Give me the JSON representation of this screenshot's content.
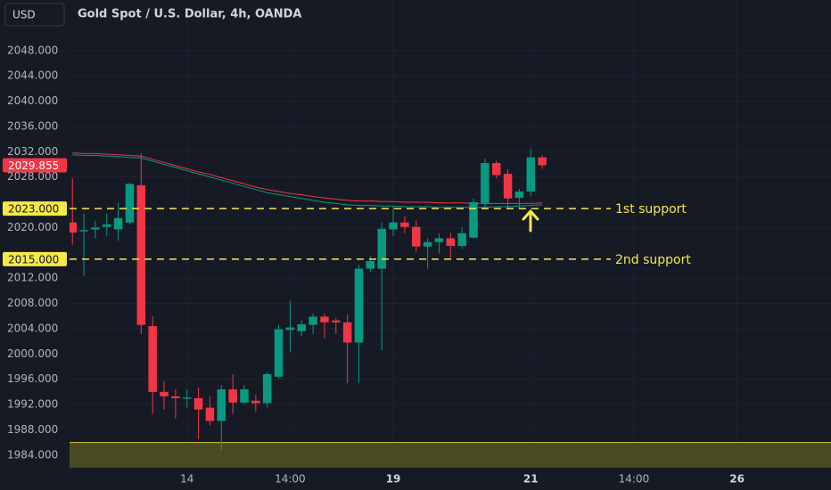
{
  "chart_data": {
    "type": "candlestick",
    "title": "Gold Spot / U.S. Dollar, 4h, OANDA",
    "currency": "USD",
    "ylim": [
      1982,
      2056
    ],
    "yticks": [
      {
        "value": 2048,
        "label": "2048.000"
      },
      {
        "value": 2044,
        "label": "2044.000"
      },
      {
        "value": 2040,
        "label": "2040.000"
      },
      {
        "value": 2036,
        "label": "2036.000"
      },
      {
        "value": 2032,
        "label": "2032.000"
      },
      {
        "value": 2028,
        "label": "2028.000"
      },
      {
        "value": 2020,
        "label": "2020.000"
      },
      {
        "value": 2012,
        "label": "2012.000"
      },
      {
        "value": 2008,
        "label": "2008.000"
      },
      {
        "value": 2004,
        "label": "2004.000"
      },
      {
        "value": 2000,
        "label": "2000.000"
      },
      {
        "value": 1996,
        "label": "1996.000"
      },
      {
        "value": 1992,
        "label": "1992.000"
      },
      {
        "value": 1988,
        "label": "1988.000"
      },
      {
        "value": 1984,
        "label": "1984.000"
      }
    ],
    "xlim": [
      -0.25,
      66.2
    ],
    "xticks": [
      {
        "value": 10,
        "label": "14"
      },
      {
        "value": 19,
        "label": "14:00"
      },
      {
        "value": 28,
        "label": "19"
      },
      {
        "value": 40,
        "label": "21"
      },
      {
        "value": 49,
        "label": "14:00"
      },
      {
        "value": 58,
        "label": "26"
      }
    ],
    "grid": true,
    "up_color": "#089981",
    "down_color": "#f23645",
    "open": [
      2020.8,
      2019.4,
      2019.7,
      2020.1,
      2019.7,
      2020.8,
      2026.7,
      2004.4,
      1994.0,
      1993.3,
      1992.9,
      1993.0,
      1991.5,
      1989.4,
      1994.4,
      1992.3,
      1992.6,
      1992.2,
      1996.4,
      2003.8,
      2003.6,
      2004.6,
      2005.9,
      2005.3,
      2005.0,
      2001.8,
      2013.5,
      2013.5,
      2019.7,
      2020.8,
      2020.1,
      2017.0,
      2017.7,
      2018.3,
      2017.1,
      2018.4,
      2023.9,
      2030.2,
      2028.5,
      2024.7,
      2025.7,
      2031.1
    ],
    "high": [
      2027.8,
      2022.2,
      2021.1,
      2022.2,
      2023.9,
      2027.1,
      2031.8,
      2006.0,
      1995.7,
      1994.4,
      1994.4,
      1994.7,
      1993.3,
      1995.1,
      1996.8,
      1995.1,
      1993.6,
      1997.1,
      2004.6,
      2008.4,
      2005.3,
      2006.4,
      2006.4,
      2005.7,
      2006.3,
      2014.1,
      2015.5,
      2020.8,
      2023.4,
      2021.8,
      2021.1,
      2018.3,
      2019.1,
      2019.2,
      2020.0,
      2024.6,
      2030.9,
      2030.6,
      2029.2,
      2026.1,
      2032.4,
      2031.4
    ],
    "low": [
      2017.3,
      2012.3,
      2018.3,
      2018.7,
      2017.9,
      2020.5,
      2003.2,
      1990.5,
      1991.2,
      1989.8,
      1991.5,
      1986.5,
      1988.7,
      1984.8,
      1990.5,
      1992.0,
      1990.9,
      1991.5,
      1996.1,
      2000.4,
      2002.8,
      2003.2,
      2002.5,
      2003.2,
      1995.4,
      1995.4,
      2013.0,
      2000.6,
      2018.7,
      2019.1,
      2016.1,
      2013.5,
      2015.9,
      2015.2,
      2016.6,
      2018.3,
      2023.3,
      2027.8,
      2022.9,
      2022.9,
      2025.0,
      2029.3
    ],
    "close": [
      2019.2,
      2019.6,
      2020.0,
      2020.5,
      2021.5,
      2026.9,
      2004.6,
      1994.0,
      1993.3,
      1993.0,
      1993.1,
      1991.2,
      1989.4,
      1994.4,
      1992.3,
      1994.4,
      1992.2,
      1996.8,
      2003.9,
      2004.2,
      2004.7,
      2005.9,
      2005.0,
      2005.0,
      2001.8,
      2013.5,
      2014.7,
      2019.8,
      2020.8,
      2020.1,
      2017.0,
      2017.7,
      2018.3,
      2017.1,
      2019.1,
      2024.0,
      2030.2,
      2028.3,
      2024.6,
      2025.7,
      2031.1,
      2029.855
    ],
    "lines": [
      {
        "color": "#f23645",
        "values": [
          2031.8,
          2031.7,
          2031.7,
          2031.6,
          2031.5,
          2031.4,
          2031.3,
          2030.8,
          2030.3,
          2029.8,
          2029.3,
          2028.8,
          2028.4,
          2027.9,
          2027.4,
          2026.9,
          2026.4,
          2026.0,
          2025.7,
          2025.4,
          2025.2,
          2024.9,
          2024.7,
          2024.5,
          2024.3,
          2024.2,
          2024.2,
          2024.1,
          2024.1,
          2024.0,
          2024.0,
          2024.0,
          2023.9,
          2023.9,
          2023.9,
          2023.8,
          2023.8,
          2023.8,
          2023.8,
          2023.8,
          2023.8,
          2023.9
        ]
      },
      {
        "color": "#089981",
        "values": [
          2031.5,
          2031.4,
          2031.4,
          2031.3,
          2031.2,
          2031.1,
          2031.0,
          2030.5,
          2030.0,
          2029.5,
          2029.0,
          2028.5,
          2028.0,
          2027.5,
          2027.0,
          2026.5,
          2026.0,
          2025.5,
          2025.2,
          2024.9,
          2024.6,
          2024.3,
          2024.0,
          2023.8,
          2023.6,
          2023.5,
          2023.5,
          2023.4,
          2023.4,
          2023.3,
          2023.3,
          2023.3,
          2023.2,
          2023.2,
          2023.2,
          2023.2,
          2023.2,
          2023.3,
          2023.3,
          2023.4,
          2023.5,
          2023.6
        ]
      }
    ],
    "last_price": {
      "value": 2029.855,
      "label": "2029.855"
    },
    "levels": [
      {
        "value": 2023,
        "price_label": "2023.000",
        "label": "1st support",
        "color": "#f5e94a"
      },
      {
        "value": 2015,
        "price_label": "2015.000",
        "label": "2nd support",
        "color": "#f5e94a"
      }
    ],
    "zone_top": 1986
  }
}
